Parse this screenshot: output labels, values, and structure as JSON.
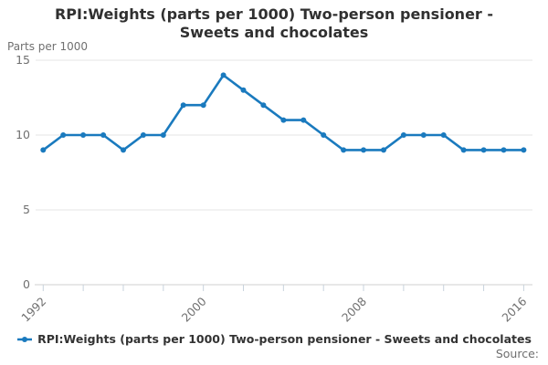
{
  "title": "RPI:Weights (parts per 1000) Two-person pensioner - Sweets and chocolates",
  "y_axis_title": "Parts per 1000",
  "source_label": "Source:",
  "legend": {
    "label": "RPI:Weights (parts per 1000) Two-person pensioner - Sweets and chocolates"
  },
  "colors": {
    "series": "#1a7abe",
    "grid": "#e4e4e4",
    "axis": "#cfcfcf",
    "tick": "#c8d3dd",
    "label": "#707070",
    "title": "#303030"
  },
  "chart_data": {
    "type": "line",
    "title": "RPI:Weights (parts per 1000) Two-person pensioner - Sweets and chocolates",
    "ylabel": "Parts per 1000",
    "xlabel": "",
    "x": [
      1992,
      1993,
      1994,
      1995,
      1996,
      1997,
      1998,
      1999,
      2000,
      2001,
      2002,
      2003,
      2004,
      2005,
      2006,
      2007,
      2008,
      2009,
      2010,
      2011,
      2012,
      2013,
      2014,
      2015,
      2016
    ],
    "series": [
      {
        "name": "RPI:Weights (parts per 1000) Two-person pensioner - Sweets and chocolates",
        "values": [
          9,
          10,
          10,
          10,
          9,
          10,
          10,
          12,
          12,
          14,
          13,
          12,
          11,
          11,
          10,
          9,
          9,
          9,
          10,
          10,
          10,
          9,
          9,
          9,
          9
        ]
      }
    ],
    "ylim": [
      0,
      15
    ],
    "y_ticks": [
      0,
      5,
      10,
      15
    ],
    "x_tick_step": 2,
    "x_labeled_ticks": [
      1992,
      2000,
      2008,
      2016
    ],
    "grid": "horizontal",
    "legend_position": "bottom",
    "marker": "circle"
  }
}
